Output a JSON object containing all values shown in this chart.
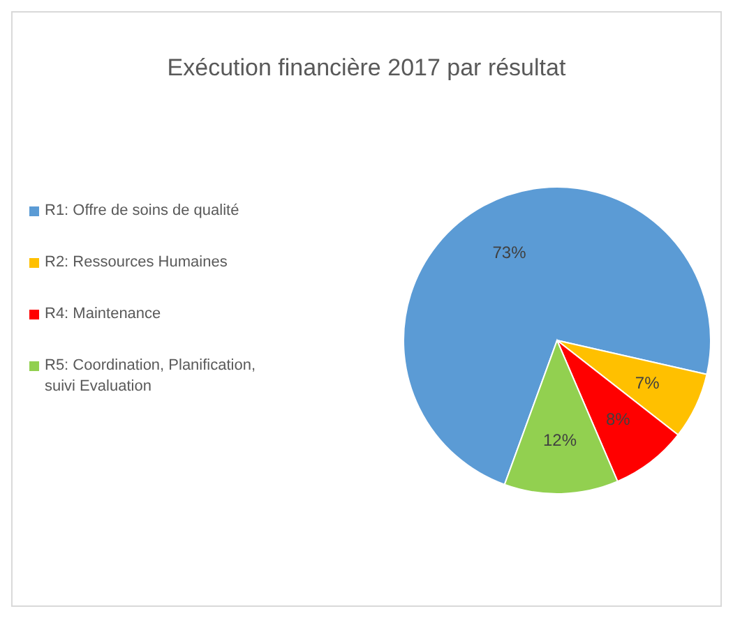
{
  "chart_data": {
    "type": "pie",
    "title": "Exécution financière 2017 par résultat",
    "categories": [
      "R1: Offre de soins de qualité",
      "R2: Ressources Humaines",
      "R4: Maintenance",
      "R5: Coordination, Planification, suivi Evaluation"
    ],
    "values": [
      73,
      7,
      8,
      12
    ],
    "colors": [
      "#5b9bd5",
      "#ffc000",
      "#ff0000",
      "#92d050"
    ],
    "value_labels": [
      "73%",
      "7%",
      "8%",
      "12%"
    ],
    "legend": "left"
  }
}
